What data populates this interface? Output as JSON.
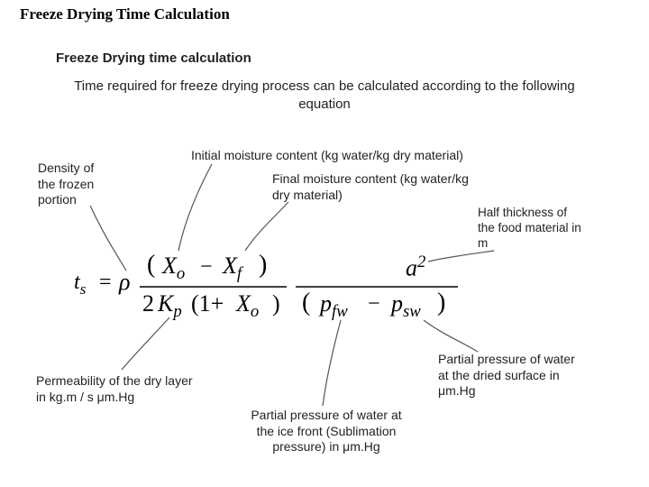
{
  "title": "Freeze Drying Time Calculation",
  "subtitle": "Freeze Drying time calculation",
  "intro": "Time required for freeze drying process can be calculated according to the following equation",
  "labels": {
    "density": "Density of\nthe frozen\nportion",
    "xo": "Initial moisture content (kg water/kg dry material)",
    "xf": "Final moisture content (kg water/kg\ndry material)",
    "a": "Half thickness of\nthe food material in\nm",
    "kp": "Permeability of the dry layer\nin kg.m / s μm.Hg",
    "psw": "Partial pressure of water\nat the dried surface in\nμm.Hg",
    "pfw": "Partial pressure of water at\nthe ice front (Sublimation\npressure) in μm.Hg"
  },
  "eq": {
    "ts": "t",
    "ts_sub": "s",
    "eq_sign": "=",
    "rho": "ρ",
    "Xo": "X",
    "Xo_sub": "o",
    "minus": "−",
    "Xf": "X",
    "Xf_sub": "f",
    "two": "2",
    "Kp": "K",
    "Kp_sub": "p",
    "one_plus": "(1+",
    "Xo2": "X",
    "Xo2_sub": "o",
    "close": ")",
    "a": "a",
    "a_sup": "2",
    "pfw": "p",
    "pfw_sub": "fw",
    "psw": "p",
    "psw_sub": "sw"
  },
  "style": {
    "line_color": "#555555",
    "line_width": 1.2,
    "bar_color": "#000000",
    "bar_width": 1.5
  }
}
